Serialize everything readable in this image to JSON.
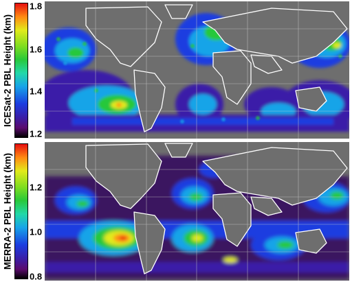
{
  "panels": [
    {
      "colorbar_label": "ICESat-2 PBL Height (km)",
      "colorbar_ticks": [
        "1.8",
        "1.6",
        "1.4",
        "1.2"
      ],
      "range_km": [
        1.2,
        1.8
      ]
    },
    {
      "colorbar_label": "MERRA-2 PBL Height (km)",
      "colorbar_ticks": [
        "1.2",
        "1.0",
        "0.8"
      ],
      "range_km": [
        0.8,
        1.4
      ]
    }
  ],
  "colors": {
    "land": "#6e6e6e",
    "coastline": "#ffffff",
    "gridline": "#c8c8c8",
    "colormap": [
      "#000000",
      "#5b0b6e",
      "#1b3de0",
      "#17a4e8",
      "#28c83a",
      "#e2ea1b",
      "#ff8a12",
      "#e60f0f"
    ]
  }
}
